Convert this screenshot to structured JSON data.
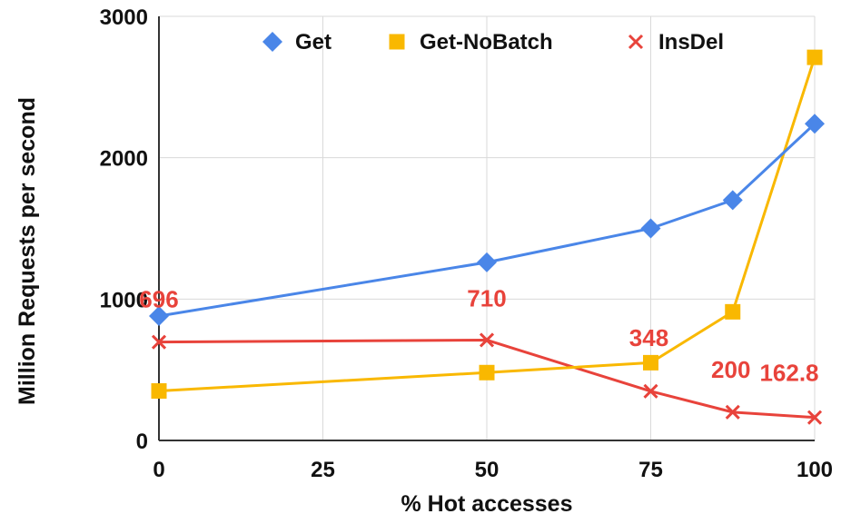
{
  "chart_data": {
    "type": "line",
    "title": "",
    "xlabel": "% Hot accesses",
    "ylabel": "Million Requests per second",
    "xlim": [
      0,
      100
    ],
    "ylim": [
      0,
      3000
    ],
    "x_ticks": [
      "0",
      "25",
      "50",
      "75",
      "100"
    ],
    "y_ticks": [
      "0",
      "1000",
      "2000",
      "3000"
    ],
    "grid": true,
    "legend_position": "top",
    "series": [
      {
        "name": "Get",
        "color": "#4a86e8",
        "marker": "diamond",
        "x": [
          0,
          50,
          75,
          87.5,
          100
        ],
        "values": [
          880,
          1260,
          1500,
          1700,
          2240
        ]
      },
      {
        "name": "Get-NoBatch",
        "color": "#f9b800",
        "marker": "square",
        "x": [
          0,
          50,
          75,
          87.5,
          100
        ],
        "values": [
          350,
          480,
          550,
          910,
          2710
        ]
      },
      {
        "name": "InsDel",
        "color": "#e8433b",
        "marker": "x",
        "x": [
          0,
          50,
          75,
          87.5,
          100
        ],
        "values": [
          696,
          710,
          348,
          200,
          162.8
        ]
      }
    ],
    "data_labels": [
      {
        "text": "696",
        "series": "InsDel",
        "x": 0
      },
      {
        "text": "710",
        "series": "InsDel",
        "x": 50
      },
      {
        "text": "348",
        "series": "InsDel",
        "x": 75
      },
      {
        "text": "200",
        "series": "InsDel",
        "x": 87.5
      },
      {
        "text": "162.8",
        "series": "InsDel",
        "x": 100
      }
    ],
    "data_label_color": "#e8433b"
  }
}
